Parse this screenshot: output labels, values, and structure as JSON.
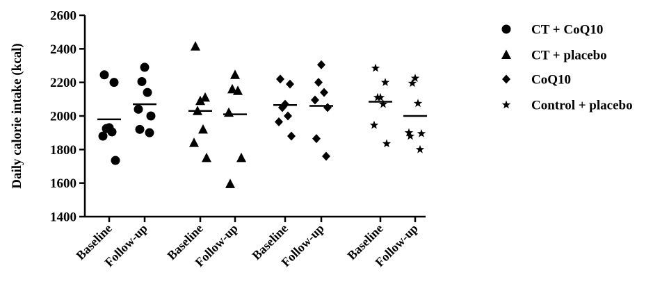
{
  "chart_data": {
    "type": "scatter",
    "title": "",
    "xlabel": "",
    "ylabel": "Daily calorie intake (kcal)",
    "ylim": [
      1400,
      2600
    ],
    "yticks": [
      1400,
      1600,
      1800,
      2000,
      2200,
      2400,
      2600
    ],
    "grid": false,
    "legend_position": "right",
    "categories": [
      "Baseline",
      "Follow-up",
      "Baseline",
      "Follow-up",
      "Baseline",
      "Follow-up",
      "Baseline",
      "Follow-up"
    ],
    "series": [
      {
        "name": "CT + CoQ10",
        "marker": "circle",
        "baseline": [
          2245,
          2200,
          1930,
          1925,
          1905,
          1880,
          1735
        ],
        "follow_up": [
          2290,
          2205,
          2140,
          2040,
          2000,
          1920,
          1900
        ],
        "baseline_mean": 1980,
        "follow_up_mean": 2070
      },
      {
        "name": "CT + placebo",
        "marker": "triangle",
        "baseline": [
          2415,
          2110,
          2090,
          2030,
          1920,
          1840,
          1750
        ],
        "follow_up": [
          2245,
          2160,
          2150,
          2020,
          1750,
          1595
        ],
        "baseline_mean": 2030,
        "follow_up_mean": 2010
      },
      {
        "name": "CoQ10",
        "marker": "diamond",
        "baseline": [
          2220,
          2190,
          2070,
          2050,
          2000,
          1965,
          1880
        ],
        "follow_up": [
          2305,
          2200,
          2140,
          2095,
          2050,
          1865,
          1760
        ],
        "baseline_mean": 2065,
        "follow_up_mean": 2060
      },
      {
        "name": "Control + placebo",
        "marker": "star",
        "baseline": [
          2285,
          2200,
          2110,
          2110,
          2070,
          1945,
          1835
        ],
        "follow_up": [
          2225,
          2195,
          2075,
          1900,
          1895,
          1880,
          1800
        ],
        "baseline_mean": 2085,
        "follow_up_mean": 2000
      }
    ]
  }
}
